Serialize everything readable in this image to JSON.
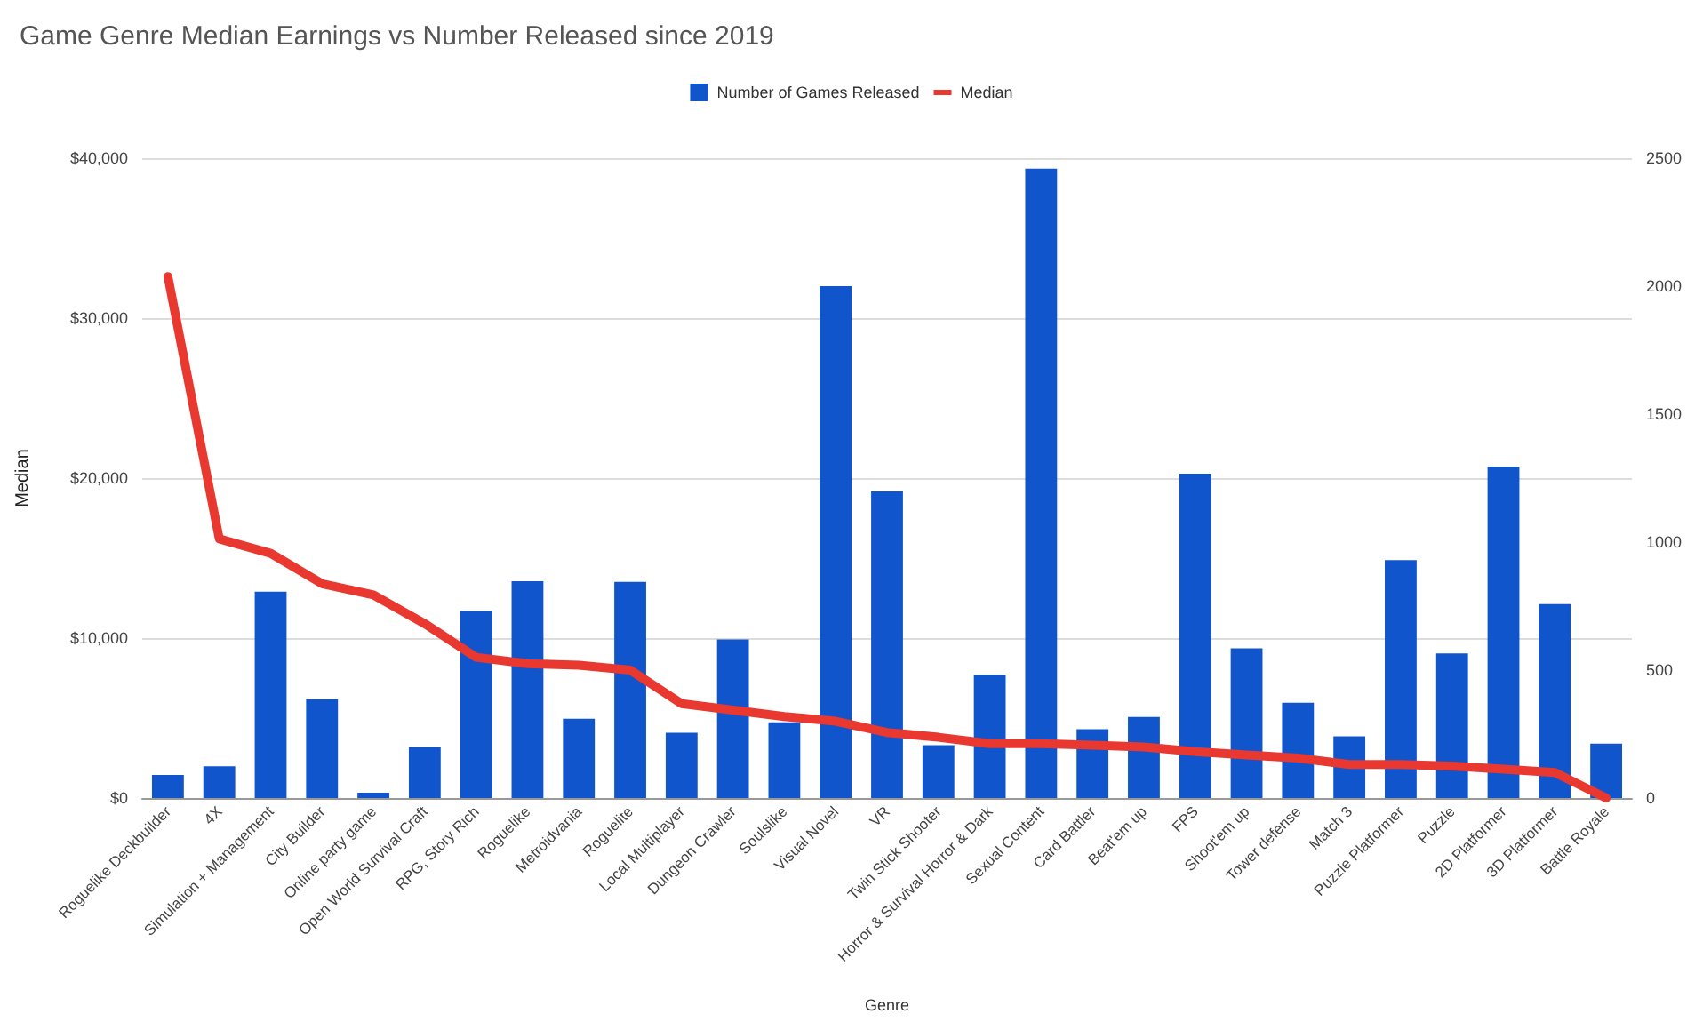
{
  "chart_data": {
    "type": "bar",
    "title": "Game Genre Median Earnings vs Number Released since 2019",
    "xlabel": "Genre",
    "ylabel": "Median",
    "categories": [
      "Roguelike Deckbuilder",
      "4X",
      "Simulation + Management",
      "City Builder",
      "Online party game",
      "Open World Survival Craft",
      "RPG, Story Rich",
      "Roguelike",
      "Metroidvania",
      "Roguelite",
      "Local Multiplayer",
      "Dungeon Crawler",
      "Soulslike",
      "Visual Novel",
      "VR",
      "Twin Stick Shooter",
      "Horror & Survival Horror & Dark",
      "Sexual Content",
      "Card Battler",
      "Beat'em up",
      "FPS",
      "Shoot'em up",
      "Tower defense",
      "Match 3",
      "Puzzle Platformer",
      "Puzzle",
      "2D Platformer",
      "3D Platformer",
      "Battle Royale"
    ],
    "series": [
      {
        "name": "Number of Games Released",
        "axis": "y2",
        "color": "#1155cc",
        "values": [
          90,
          124,
          806,
          386,
          21,
          200,
          730,
          847,
          310,
          845,
          255,
          620,
          296,
          2000,
          1198,
          207,
          482,
          2459,
          269,
          317,
          1267,
          585,
          372,
          241,
          930,
          565,
          1295,
          758,
          213
        ]
      },
      {
        "name": "Median",
        "type": "line",
        "axis": "y",
        "color": "#e8382f",
        "values": [
          32600,
          16200,
          15300,
          13400,
          12700,
          10900,
          8800,
          8400,
          8300,
          8000,
          5900,
          5500,
          5100,
          4800,
          4100,
          3800,
          3400,
          3400,
          3300,
          3200,
          2900,
          2700,
          2500,
          2100,
          2100,
          2000,
          1800,
          1600,
          0
        ]
      }
    ],
    "ylim": [
      0,
      40000
    ],
    "yticks": [
      {
        "value": 0,
        "label": "$0"
      },
      {
        "value": 10000,
        "label": "$10,000"
      },
      {
        "value": 20000,
        "label": "$20,000"
      },
      {
        "value": 30000,
        "label": "$30,000"
      },
      {
        "value": 40000,
        "label": "$40,000"
      }
    ],
    "y2lim": [
      0,
      2500
    ],
    "y2ticks": [
      0,
      500,
      1000,
      1500,
      2000,
      2500
    ],
    "grid": true,
    "legend": "top",
    "marker": "none",
    "line_style": "solid"
  }
}
